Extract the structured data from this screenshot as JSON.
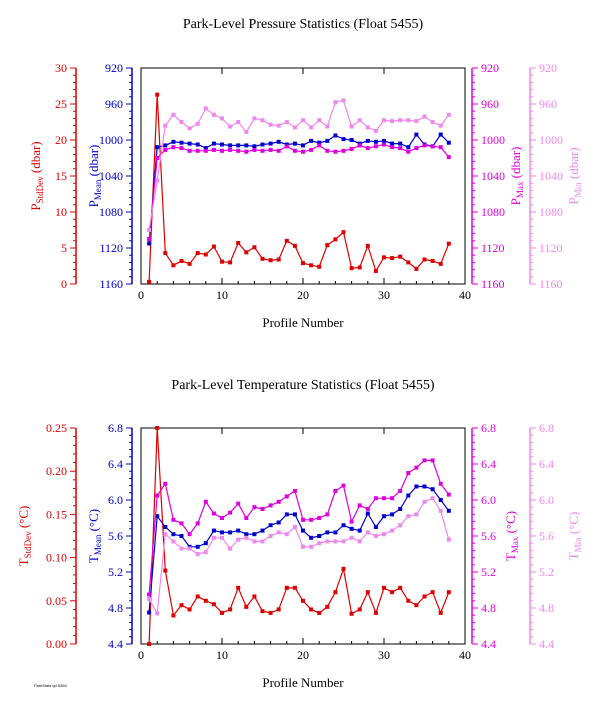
{
  "footer_text": "ParkStats.tpl 5455",
  "chart_data": [
    {
      "type": "line",
      "title": "Park-Level Pressure Statistics (Float 5455)",
      "xlabel": "Profile Number",
      "xlim": [
        0,
        40
      ],
      "xticks": [
        0,
        10,
        20,
        30,
        40
      ],
      "x": [
        1,
        2,
        3,
        4,
        5,
        6,
        7,
        8,
        9,
        10,
        11,
        12,
        13,
        14,
        15,
        16,
        17,
        18,
        19,
        20,
        21,
        22,
        23,
        24,
        25,
        26,
        27,
        28,
        29,
        30,
        31,
        32,
        33,
        34,
        35,
        36,
        37,
        38
      ],
      "axes": [
        {
          "id": "left1",
          "label_main": "P",
          "label_sub": "StdDev",
          "label_unit": " (dbar)",
          "color": "#dd0000",
          "lim": [
            0,
            30
          ],
          "ticks": [
            0,
            5,
            10,
            15,
            20,
            25,
            30
          ],
          "reversed": false
        },
        {
          "id": "left2",
          "label_main": "P",
          "label_sub": "Mean",
          "label_unit": " (dbar)",
          "color": "#0000cc",
          "lim": [
            920,
            1160
          ],
          "ticks": [
            920,
            960,
            1000,
            1040,
            1080,
            1120,
            1160
          ],
          "reversed": true
        },
        {
          "id": "right1",
          "label_main": "P",
          "label_sub": "Max",
          "label_unit": " (dbar)",
          "color": "#dd00dd",
          "lim": [
            920,
            1160
          ],
          "ticks": [
            920,
            960,
            1000,
            1040,
            1080,
            1120,
            1160
          ],
          "reversed": true
        },
        {
          "id": "right2",
          "label_main": "P",
          "label_sub": "Min",
          "label_unit": " (dbar)",
          "color": "#ee88ee",
          "lim": [
            920,
            1160
          ],
          "ticks": [
            920,
            960,
            1000,
            1040,
            1080,
            1120,
            1160
          ],
          "reversed": true
        }
      ],
      "series": [
        {
          "axis": "left1",
          "color": "#dd0000",
          "values": [
            0.3,
            26.3,
            4.3,
            2.6,
            3.2,
            2.8,
            4.3,
            4.1,
            5.2,
            3.1,
            3.0,
            5.7,
            4.4,
            5.1,
            3.5,
            3.3,
            3.4,
            6.0,
            5.3,
            2.9,
            2.6,
            2.4,
            5.4,
            6.2,
            7.2,
            2.2,
            2.3,
            5.3,
            1.8,
            3.7,
            3.6,
            3.8,
            3.0,
            2.1,
            3.4,
            3.2,
            2.8,
            5.6
          ]
        },
        {
          "axis": "left2",
          "color": "#0000cc",
          "values": [
            1115,
            1008,
            1006,
            1002,
            1003,
            1004,
            1005,
            1009,
            1004,
            1005,
            1006,
            1006,
            1006,
            1007,
            1005,
            1004,
            1002,
            1005,
            1004,
            1006,
            1001,
            1003,
            1001,
            995,
            999,
            1000,
            1004,
            1001,
            1002,
            1001,
            1004,
            1004,
            1008,
            994,
            1005,
            1007,
            994,
            1003
          ]
        },
        {
          "axis": "right1",
          "color": "#dd00dd",
          "values": [
            1110,
            1020,
            1011,
            1008,
            1009,
            1012,
            1012,
            1012,
            1011,
            1012,
            1011,
            1012,
            1013,
            1011,
            1012,
            1011,
            1012,
            1007,
            1012,
            1013,
            1011,
            1006,
            1012,
            1013,
            1012,
            1010,
            1006,
            1009,
            1007,
            1005,
            1008,
            1009,
            1013,
            1009,
            1006,
            1007,
            1008,
            1019
          ]
        },
        {
          "axis": "right2",
          "color": "#ee88ee",
          "values": [
            1100,
            1045,
            984,
            972,
            980,
            987,
            982,
            965,
            972,
            976,
            985,
            980,
            991,
            976,
            978,
            983,
            984,
            980,
            986,
            978,
            986,
            978,
            985,
            958,
            956,
            985,
            978,
            986,
            990,
            978,
            979,
            978,
            978,
            979,
            974,
            980,
            984,
            972
          ]
        }
      ]
    },
    {
      "type": "line",
      "title": "Park-Level Temperature Statistics (Float 5455)",
      "xlabel": "Profile Number",
      "xlim": [
        0,
        40
      ],
      "xticks": [
        0,
        10,
        20,
        30,
        40
      ],
      "x": [
        1,
        2,
        3,
        4,
        5,
        6,
        7,
        8,
        9,
        10,
        11,
        12,
        13,
        14,
        15,
        16,
        17,
        18,
        19,
        20,
        21,
        22,
        23,
        24,
        25,
        26,
        27,
        28,
        29,
        30,
        31,
        32,
        33,
        34,
        35,
        36,
        37,
        38
      ],
      "axes": [
        {
          "id": "left1",
          "label_main": "T",
          "label_sub": "StdDev",
          "label_unit": " (°C)",
          "color": "#dd0000",
          "lim": [
            0,
            0.25
          ],
          "ticks": [
            0.0,
            0.05,
            0.1,
            0.15,
            0.2,
            0.25
          ],
          "decimals": 2,
          "reversed": false
        },
        {
          "id": "left2",
          "label_main": "T",
          "label_sub": "Mean",
          "label_unit": " (°C)",
          "color": "#0000cc",
          "lim": [
            4.4,
            6.8
          ],
          "ticks": [
            4.4,
            4.8,
            5.2,
            5.6,
            6.0,
            6.4,
            6.8
          ],
          "decimals": 1,
          "reversed": false
        },
        {
          "id": "right1",
          "label_main": "T",
          "label_sub": "Max",
          "label_unit": " (°C)",
          "color": "#dd00dd",
          "lim": [
            4.4,
            6.8
          ],
          "ticks": [
            4.4,
            4.8,
            5.2,
            5.6,
            6.0,
            6.4,
            6.8
          ],
          "decimals": 1,
          "reversed": false
        },
        {
          "id": "right2",
          "label_main": "T",
          "label_sub": "Min",
          "label_unit": " (°C)",
          "color": "#ee88ee",
          "lim": [
            4.4,
            6.8
          ],
          "ticks": [
            4.4,
            4.8,
            5.2,
            5.6,
            6.0,
            6.4,
            6.8
          ],
          "decimals": 1,
          "reversed": false
        }
      ],
      "series": [
        {
          "axis": "left1",
          "color": "#dd0000",
          "values": [
            0.0,
            0.25,
            0.085,
            0.033,
            0.045,
            0.04,
            0.055,
            0.05,
            0.046,
            0.036,
            0.04,
            0.065,
            0.043,
            0.055,
            0.038,
            0.036,
            0.04,
            0.065,
            0.065,
            0.05,
            0.04,
            0.036,
            0.043,
            0.06,
            0.087,
            0.035,
            0.04,
            0.06,
            0.036,
            0.065,
            0.06,
            0.065,
            0.05,
            0.045,
            0.055,
            0.06,
            0.036,
            0.06
          ]
        },
        {
          "axis": "left2",
          "color": "#0000cc",
          "values": [
            4.75,
            5.82,
            5.7,
            5.62,
            5.6,
            5.48,
            5.48,
            5.52,
            5.66,
            5.64,
            5.64,
            5.66,
            5.62,
            5.62,
            5.66,
            5.72,
            5.75,
            5.84,
            5.84,
            5.66,
            5.58,
            5.6,
            5.64,
            5.64,
            5.72,
            5.68,
            5.66,
            5.85,
            5.7,
            5.82,
            5.84,
            5.9,
            6.05,
            6.15,
            6.15,
            6.12,
            6.0,
            5.88
          ]
        },
        {
          "axis": "right1",
          "color": "#dd00dd",
          "values": [
            4.95,
            6.05,
            6.18,
            5.78,
            5.74,
            5.62,
            5.74,
            5.98,
            5.85,
            5.8,
            5.86,
            5.96,
            5.8,
            5.92,
            5.9,
            5.94,
            5.98,
            6.04,
            6.1,
            5.78,
            5.78,
            5.8,
            5.84,
            6.1,
            6.16,
            5.76,
            5.94,
            5.9,
            6.02,
            6.02,
            6.02,
            6.1,
            6.3,
            6.36,
            6.44,
            6.44,
            6.18,
            6.06
          ]
        },
        {
          "axis": "right2",
          "color": "#ee88ee",
          "values": [
            4.9,
            4.74,
            5.62,
            5.54,
            5.46,
            5.46,
            5.4,
            5.42,
            5.58,
            5.58,
            5.46,
            5.56,
            5.58,
            5.54,
            5.54,
            5.6,
            5.64,
            5.62,
            5.7,
            5.48,
            5.48,
            5.52,
            5.54,
            5.54,
            5.54,
            5.58,
            5.54,
            5.64,
            5.6,
            5.62,
            5.66,
            5.72,
            5.82,
            5.84,
            5.98,
            6.02,
            5.88,
            5.56
          ]
        }
      ]
    }
  ]
}
